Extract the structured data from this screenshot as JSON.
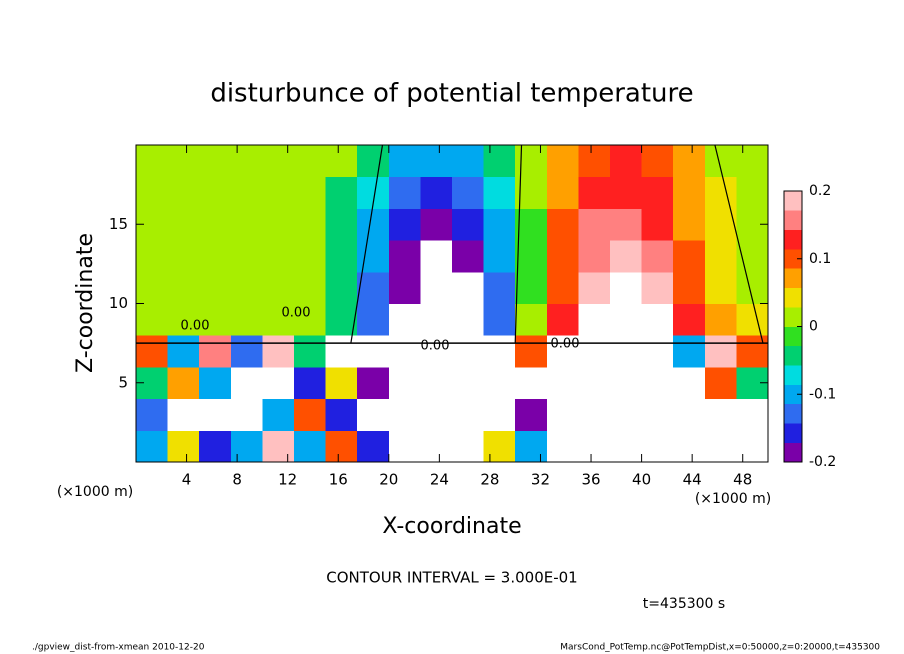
{
  "chart_data": {
    "type": "heatmap",
    "title": "disturbunce of potential temperature",
    "xlabel": "X-coordinate",
    "ylabel": "Z-coordinate",
    "x_unit": "(×1000 m)",
    "xlim": [
      0,
      50
    ],
    "ylim": [
      0,
      20
    ],
    "xticks": [
      4,
      8,
      12,
      16,
      20,
      24,
      28,
      32,
      36,
      40,
      44,
      48
    ],
    "yticks": [
      5,
      10,
      15
    ],
    "x": [
      1.25,
      3.75,
      6.25,
      8.75,
      11.25,
      13.75,
      16.25,
      18.75,
      21.25,
      23.75,
      26.25,
      28.75,
      31.25,
      33.75,
      36.25,
      38.75,
      41.25,
      43.75,
      46.25,
      48.75
    ],
    "y": [
      1,
      3,
      5,
      7,
      9,
      11,
      13,
      15,
      17,
      19
    ],
    "z": [
      [
        -0.1,
        0.05,
        -0.15,
        -0.1,
        0.2,
        -0.1,
        0.1,
        -0.15,
        -0.3,
        0.3,
        0.3,
        0.05,
        -0.1,
        -0.3,
        -0.3,
        -0.3,
        -0.3,
        -0.3,
        -0.3,
        -0.3
      ],
      [
        -0.12,
        0.3,
        0.3,
        0.3,
        -0.1,
        0.1,
        -0.15,
        0.25,
        0.3,
        -0.3,
        0.3,
        -0.3,
        -0.18,
        -0.3,
        -0.3,
        -0.3,
        -0.3,
        -0.3,
        -0.3,
        -0.3
      ],
      [
        -0.05,
        0.08,
        -0.1,
        0.3,
        0.25,
        -0.15,
        0.05,
        -0.2,
        0.3,
        -0.3,
        -0.25,
        -0.3,
        -0.25,
        -0.3,
        -0.3,
        -0.3,
        -0.3,
        -0.3,
        0.1,
        -0.05
      ],
      [
        0.1,
        -0.1,
        0.15,
        -0.12,
        0.2,
        -0.05,
        0.3,
        -0.3,
        0.25,
        -0.3,
        0.3,
        -0.25,
        0.1,
        0.3,
        -0.25,
        -0.3,
        0.3,
        -0.1,
        0.2,
        0.1
      ],
      [
        0.02,
        0.01,
        0.01,
        0.01,
        0.01,
        0.02,
        -0.05,
        -0.12,
        -0.21,
        -0.27,
        -0.22,
        -0.13,
        0,
        0.13,
        0.22,
        0.26,
        0.21,
        0.13,
        0.07,
        0.03
      ],
      [
        0.01,
        0,
        0,
        0,
        0,
        0,
        -0.04,
        -0.12,
        -0.2,
        -0.26,
        -0.23,
        -0.12,
        -0.01,
        0.11,
        0.19,
        0.25,
        0.18,
        0.1,
        0.05,
        0.02
      ],
      [
        0,
        0,
        0,
        0,
        0,
        0,
        -0.04,
        -0.11,
        -0.18,
        -0.25,
        -0.19,
        -0.1,
        -0.01,
        0.1,
        0.17,
        0.19,
        0.16,
        0.09,
        0.04,
        0.01
      ],
      [
        0,
        0,
        0,
        0,
        0,
        0,
        -0.04,
        -0.1,
        -0.16,
        -0.19,
        -0.16,
        -0.09,
        -0.01,
        0.09,
        0.15,
        0.17,
        0.14,
        0.08,
        0.03,
        0.01
      ],
      [
        0,
        0,
        0,
        0,
        0,
        0.01,
        -0.03,
        -0.08,
        -0.13,
        -0.15,
        -0.13,
        -0.07,
        0,
        0.08,
        0.12,
        0.14,
        0.12,
        0.07,
        0.03,
        0
      ],
      [
        0,
        0,
        0,
        0,
        0.01,
        0.01,
        0,
        -0.05,
        -0.09,
        -0.11,
        -0.09,
        -0.05,
        0,
        0.06,
        0.1,
        0.12,
        0.1,
        0.06,
        0.02,
        0
      ]
    ],
    "colorbar_lim": [
      -0.2,
      0.2
    ],
    "colorbar_ticks": [
      -0.2,
      -0.1,
      0,
      0.1,
      0.2
    ],
    "colors": [
      "#7a00a8",
      "#2020e0",
      "#2f6cf0",
      "#00a8f0",
      "#00dce0",
      "#00d070",
      "#30e020",
      "#a8ee00",
      "#f0e000",
      "#ffa000",
      "#ff5000",
      "#ff2020",
      "#ff8080",
      "#ffc0c0"
    ],
    "contour_label": "0.00",
    "contour_interval": "CONTOUR INTERVAL = 3.000E-01",
    "time_label": "t=435300 s",
    "footer_left": "./gpview_dist-from-xmean  2010-12-20",
    "footer_right": "MarsCond_PotTemp.nc@PotTempDist,x=0:50000,z=0:20000,t=435300"
  }
}
